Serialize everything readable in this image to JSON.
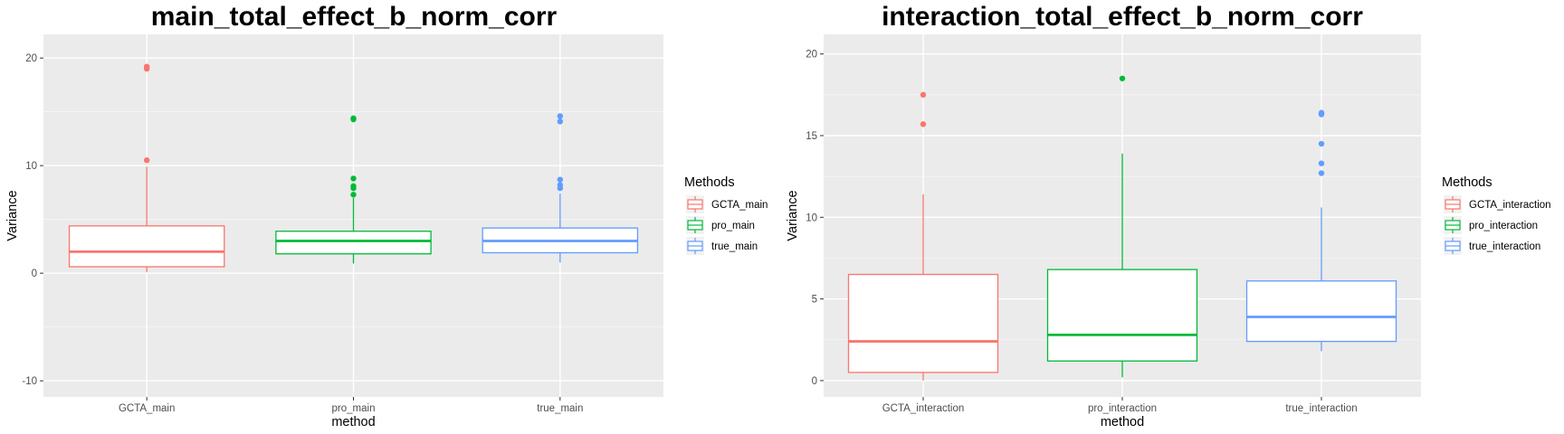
{
  "chart_data": [
    {
      "type": "box",
      "title": "main_total_effect_b_norm_corr",
      "xlabel": "method",
      "ylabel": "Variance",
      "ylim": [
        -11.5,
        22.2
      ],
      "yticks": [
        -10,
        0,
        10,
        20
      ],
      "ytick_labels": [
        "-10",
        "0",
        "10",
        "20"
      ],
      "grid": true,
      "legend": {
        "title": "Methods",
        "placement": "right"
      },
      "categories": [
        "GCTA_main",
        "pro_main",
        "true_main"
      ],
      "series": [
        {
          "name": "GCTA_main",
          "color": "#F8766D",
          "min": 0.1,
          "q1": 0.6,
          "median": 2.0,
          "q3": 4.4,
          "max": 9.9,
          "outliers": [
            10.5,
            19.0,
            19.2
          ]
        },
        {
          "name": "pro_main",
          "color": "#00BA38",
          "min": 0.9,
          "q1": 1.8,
          "median": 3.0,
          "q3": 3.9,
          "max": 7.0,
          "outliers": [
            7.3,
            7.9,
            8.1,
            8.8,
            14.3,
            14.4
          ]
        },
        {
          "name": "true_main",
          "color": "#619CFF",
          "min": 1.0,
          "q1": 1.9,
          "median": 3.0,
          "q3": 4.2,
          "max": 7.4,
          "outliers": [
            7.9,
            8.2,
            8.7,
            14.1,
            14.6
          ]
        }
      ]
    },
    {
      "type": "box",
      "title": "interaction_total_effect_b_norm_corr",
      "xlabel": "method",
      "ylabel": "Variance",
      "ylim": [
        -1.0,
        21.2
      ],
      "yticks": [
        0,
        5,
        10,
        15,
        20
      ],
      "ytick_labels": [
        "0",
        "5",
        "10",
        "15",
        "20"
      ],
      "grid": true,
      "legend": {
        "title": "Methods",
        "placement": "right"
      },
      "categories": [
        "GCTA_interaction",
        "pro_interaction",
        "true_interaction"
      ],
      "series": [
        {
          "name": "GCTA_interaction",
          "color": "#F8766D",
          "min": 0.0,
          "q1": 0.5,
          "median": 2.4,
          "q3": 6.5,
          "max": 11.4,
          "outliers": [
            15.7,
            17.5
          ]
        },
        {
          "name": "pro_interaction",
          "color": "#00BA38",
          "min": 0.2,
          "q1": 1.2,
          "median": 2.8,
          "q3": 6.8,
          "max": 13.9,
          "outliers": [
            18.5
          ]
        },
        {
          "name": "true_interaction",
          "color": "#619CFF",
          "min": 1.8,
          "q1": 2.4,
          "median": 3.9,
          "q3": 6.1,
          "max": 10.6,
          "outliers": [
            12.7,
            13.3,
            14.5,
            16.3,
            16.4
          ]
        }
      ]
    }
  ]
}
